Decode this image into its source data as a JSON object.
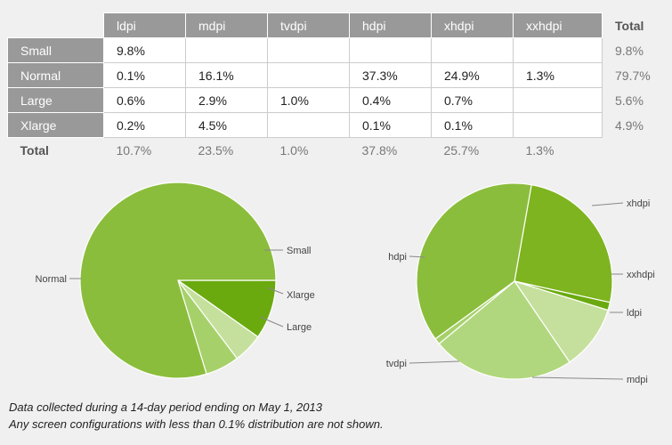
{
  "table": {
    "columns": [
      "ldpi",
      "mdpi",
      "tvdpi",
      "hdpi",
      "xhdpi",
      "xxhdpi"
    ],
    "total_label": "Total",
    "rows": [
      {
        "label": "Small",
        "cells": [
          "9.8%",
          "",
          "",
          "",
          "",
          ""
        ],
        "total": "9.8%"
      },
      {
        "label": "Normal",
        "cells": [
          "0.1%",
          "16.1%",
          "",
          "37.3%",
          "24.9%",
          "1.3%"
        ],
        "total": "79.7%"
      },
      {
        "label": "Large",
        "cells": [
          "0.6%",
          "2.9%",
          "1.0%",
          "0.4%",
          "0.7%",
          ""
        ],
        "total": "5.6%"
      },
      {
        "label": "Xlarge",
        "cells": [
          "0.2%",
          "4.5%",
          "",
          "0.1%",
          "0.1%",
          ""
        ],
        "total": "4.9%"
      }
    ],
    "totals": [
      "10.7%",
      "23.5%",
      "1.0%",
      "37.8%",
      "25.7%",
      "1.3%"
    ]
  },
  "chart_data": [
    {
      "type": "pie",
      "slices": [
        {
          "label": "Small",
          "value": 9.8,
          "color": "#6aaa0e"
        },
        {
          "label": "Xlarge",
          "value": 4.9,
          "color": "#c5e09c"
        },
        {
          "label": "Large",
          "value": 5.6,
          "color": "#a6d16a"
        },
        {
          "label": "Normal",
          "value": 79.7,
          "color": "#8bbd3c"
        }
      ]
    },
    {
      "type": "pie",
      "slices": [
        {
          "label": "xhdpi",
          "value": 25.7,
          "color": "#7db41f"
        },
        {
          "label": "xxhdpi",
          "value": 1.3,
          "color": "#6aaa0e"
        },
        {
          "label": "ldpi",
          "value": 10.7,
          "color": "#c5e09c"
        },
        {
          "label": "mdpi",
          "value": 23.5,
          "color": "#b1d77e"
        },
        {
          "label": "tvdpi",
          "value": 1.0,
          "color": "#a6d16a"
        },
        {
          "label": "hdpi",
          "value": 37.8,
          "color": "#8bbd3c"
        }
      ]
    }
  ],
  "notes": {
    "line1": "Data collected during a 14-day period ending on May 1, 2013",
    "line2": "Any screen configurations with less than 0.1% distribution are not shown."
  }
}
